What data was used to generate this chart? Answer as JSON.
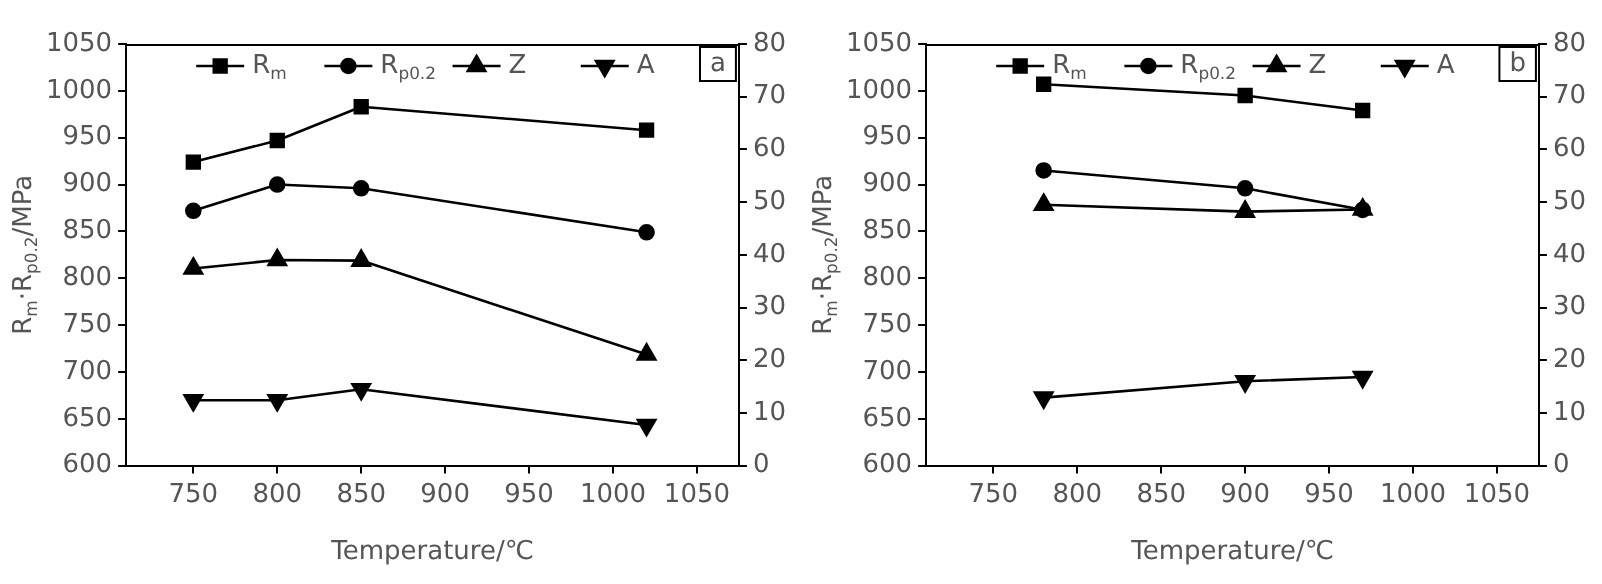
{
  "chart_data": [
    {
      "type": "line",
      "xlabel": "Temperature/℃",
      "ylabel": "R$_{m}$·R$_{p0.2}$/MPa",
      "annotations": [
        "a"
      ],
      "legend": "top",
      "grid": false,
      "x": [
        750,
        800,
        850,
        1020
      ],
      "xlim": [
        710,
        1075
      ],
      "xticks": [
        750,
        800,
        850,
        900,
        950,
        1000,
        1050
      ],
      "ylim": [
        600,
        1050
      ],
      "yticks": [
        600,
        650,
        700,
        750,
        800,
        850,
        900,
        950,
        1000,
        1050
      ],
      "y2lim": [
        0,
        80
      ],
      "y2ticks": [
        0,
        10,
        20,
        30,
        40,
        50,
        60,
        70,
        80
      ],
      "series": [
        {
          "name": "R$_{m}$",
          "color": "#000000",
          "marker": "square",
          "values": [
            924,
            947,
            983,
            958
          ]
        },
        {
          "name": "R$_{p0.2}$",
          "color": "#000000",
          "marker": "circle",
          "values": [
            872,
            900,
            896,
            849
          ]
        },
        {
          "name": "Z",
          "color": "#000000",
          "marker": "triangle",
          "axis": "y2",
          "values": [
            37.4,
            39,
            38.9,
            21.1
          ]
        },
        {
          "name": "A",
          "color": "#000000",
          "marker": "triangle-down",
          "axis": "y2",
          "values": [
            12.4,
            12.4,
            14.5,
            7.7
          ]
        }
      ]
    },
    {
      "type": "line",
      "xlabel": "Temperature/℃",
      "ylabel": "R$_{m}$·R$_{p0.2}$/MPa",
      "annotations": [
        "b"
      ],
      "legend": "top",
      "grid": false,
      "x": [
        780,
        900,
        970
      ],
      "xlim": [
        710,
        1075
      ],
      "xticks": [
        750,
        800,
        850,
        900,
        950,
        1000,
        1050
      ],
      "ylim": [
        600,
        1050
      ],
      "yticks": [
        600,
        650,
        700,
        750,
        800,
        850,
        900,
        950,
        1000,
        1050
      ],
      "y2lim": [
        0,
        80
      ],
      "y2ticks": [
        0,
        10,
        20,
        30,
        40,
        50,
        60,
        70,
        80
      ],
      "series": [
        {
          "name": "R$_{m}$",
          "color": "#000000",
          "marker": "square",
          "values": [
            1007,
            995,
            979
          ]
        },
        {
          "name": "R$_{p0.2}$",
          "color": "#000000",
          "marker": "circle",
          "values": [
            915,
            896,
            873
          ]
        },
        {
          "name": "Z",
          "color": "#000000",
          "marker": "triangle",
          "axis": "y2",
          "values": [
            49.5,
            48.2,
            48.6
          ]
        },
        {
          "name": "A",
          "color": "#000000",
          "marker": "triangle-down",
          "axis": "y2",
          "values": [
            12.9,
            16.0,
            16.8
          ]
        }
      ]
    }
  ]
}
